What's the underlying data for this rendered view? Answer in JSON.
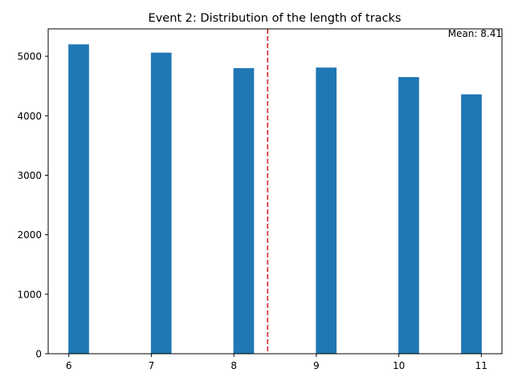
{
  "chart_data": {
    "type": "bar",
    "title": "Event 2: Distribution of the length of tracks",
    "xlabel": "",
    "ylabel": "",
    "x": [
      6.12,
      7.12,
      8.12,
      9.12,
      10.12,
      10.88
    ],
    "bar_width": 0.25,
    "values": [
      5200,
      5060,
      4800,
      4810,
      4650,
      4360
    ],
    "xlim": [
      5.75,
      11.25
    ],
    "ylim": [
      0,
      5460
    ],
    "xticks": [
      6,
      7,
      8,
      9,
      10,
      11
    ],
    "yticks": [
      0,
      1000,
      2000,
      3000,
      4000,
      5000
    ],
    "grid": false,
    "bar_color": "#1f77b4",
    "mean": 8.41,
    "mean_line_color": "#d62728",
    "mean_label": "Mean: 8.41"
  }
}
